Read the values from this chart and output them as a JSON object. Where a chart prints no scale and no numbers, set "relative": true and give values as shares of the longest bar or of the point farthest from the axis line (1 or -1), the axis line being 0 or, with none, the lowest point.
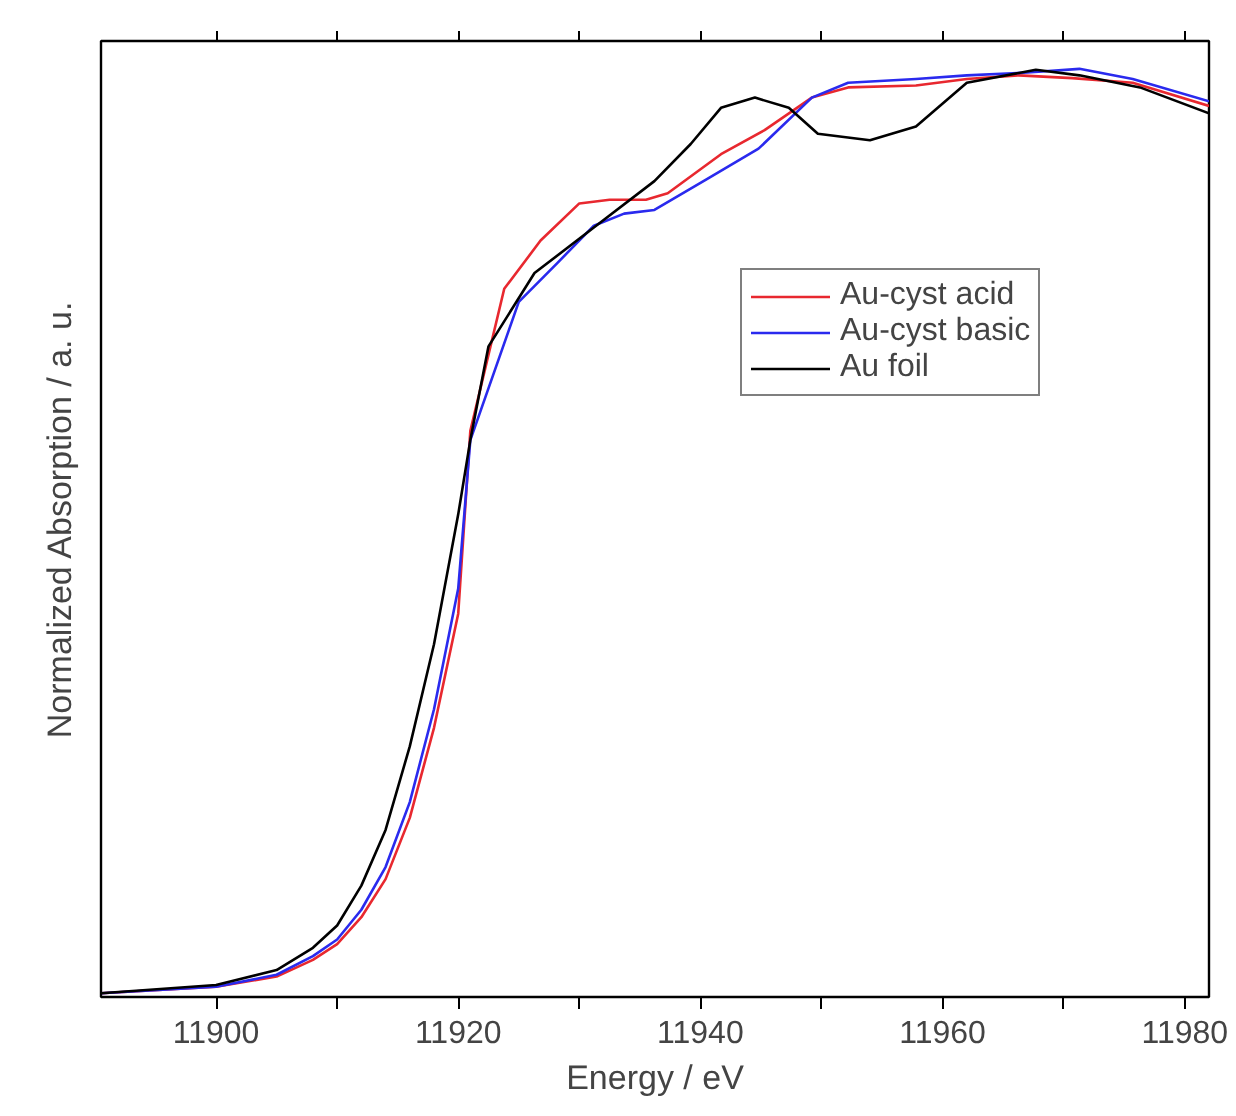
{
  "chart_data": {
    "type": "line",
    "relative": true,
    "xlabel": "Energy / eV",
    "ylabel": "Normalized Absorption / a. u.",
    "xlim": [
      11890.5,
      11982
    ],
    "xticks": [
      11900,
      {
        "value": 11910,
        "label": null
      },
      11920,
      {
        "value": 11930,
        "label": null
      },
      11940,
      {
        "value": 11950,
        "label": null
      },
      11960,
      {
        "value": 11970,
        "label": null
      },
      11980
    ],
    "legend": "top right",
    "grid": false,
    "tick_labels": "x",
    "series": [
      {
        "name": "Au-cyst acid",
        "color": "#e8282f",
        "x": [
          11890.5,
          11900,
          11905,
          11908,
          11910,
          11912,
          11914,
          11916,
          11918,
          11920,
          11921,
          11923.8,
          11926.8,
          11930,
          11932.5,
          11935.5,
          11937.3,
          11941.7,
          11945.3,
          11949.2,
          11952.2,
          11957.8,
          11962,
          11966.3,
          11970.7,
          11975.7,
          11982
        ],
        "values": [
          0.004,
          0.011,
          0.022,
          0.04,
          0.057,
          0.086,
          0.127,
          0.193,
          0.29,
          0.413,
          0.61,
          0.763,
          0.815,
          0.855,
          0.859,
          0.859,
          0.866,
          0.908,
          0.934,
          0.969,
          0.98,
          0.982,
          0.989,
          0.993,
          0.99,
          0.985,
          0.96
        ]
      },
      {
        "name": "Au-cyst basic",
        "color": "#2a2aee",
        "x": [
          11890.5,
          11900,
          11905,
          11908,
          11910,
          11912,
          11914,
          11916,
          11918,
          11920,
          11921,
          11925,
          11928.2,
          11931.2,
          11933.7,
          11936.2,
          11940.5,
          11944.8,
          11949.2,
          11952.2,
          11957.8,
          11962,
          11967,
          11971.3,
          11975.7,
          11982
        ],
        "values": [
          0.004,
          0.011,
          0.024,
          0.044,
          0.062,
          0.094,
          0.14,
          0.21,
          0.31,
          0.44,
          0.6,
          0.749,
          0.791,
          0.831,
          0.844,
          0.848,
          0.881,
          0.914,
          0.969,
          0.985,
          0.989,
          0.993,
          0.996,
          1.0,
          0.989,
          0.965
        ]
      },
      {
        "name": "Au foil",
        "color": "#000000",
        "x": [
          11890.5,
          11900,
          11905,
          11908,
          11910,
          11912,
          11914,
          11916,
          11918,
          11920,
          11921,
          11922.5,
          11926.3,
          11931.2,
          11936.2,
          11939.2,
          11941.7,
          11944.5,
          11947.3,
          11949.7,
          11954,
          11957.8,
          11962,
          11967.7,
          11971.3,
          11976.3,
          11982
        ],
        "values": [
          0.004,
          0.013,
          0.029,
          0.053,
          0.077,
          0.12,
          0.18,
          0.27,
          0.38,
          0.52,
          0.6,
          0.701,
          0.78,
          0.829,
          0.879,
          0.919,
          0.958,
          0.969,
          0.958,
          0.93,
          0.923,
          0.938,
          0.985,
          0.999,
          0.993,
          0.98,
          0.952
        ]
      }
    ]
  }
}
